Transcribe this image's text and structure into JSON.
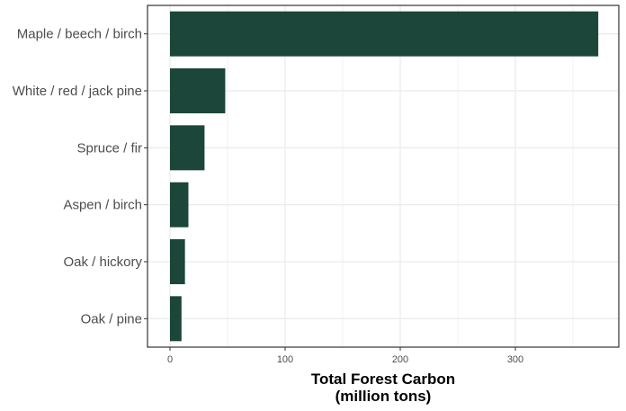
{
  "chart_data": {
    "type": "bar",
    "orientation": "horizontal",
    "categories": [
      "Maple / beech / birch",
      "White / red / jack pine",
      "Spruce / fir",
      "Aspen / birch",
      "Oak / hickory",
      "Oak / pine"
    ],
    "values": [
      372,
      48,
      30,
      16,
      13,
      10
    ],
    "xlabel_lines": [
      "Total Forest Carbon",
      "(million tons)"
    ],
    "ylabel": "",
    "title": "",
    "xlim": [
      -20,
      390
    ],
    "xticks": [
      0,
      100,
      200,
      300
    ],
    "grid": true,
    "legend": "none",
    "bar_color": "#1b4639",
    "grid_color": "#ebebeb",
    "panel_border_color": "#333333"
  }
}
